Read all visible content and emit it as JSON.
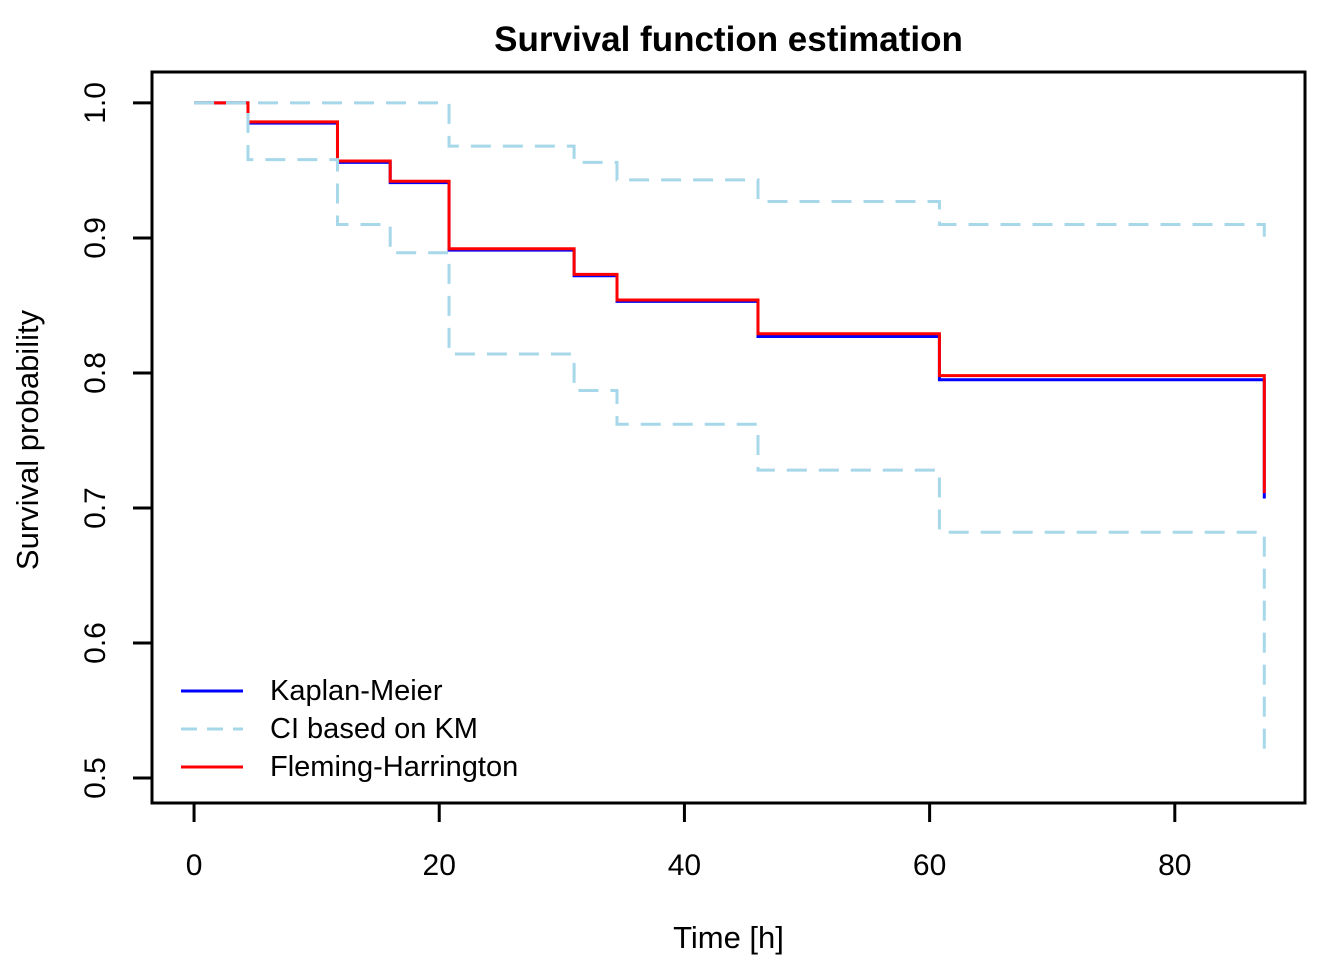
{
  "title": "Survival function estimation",
  "xlabel": "Time [h]",
  "ylabel": "Survival probability",
  "colors": {
    "kaplan_meier": "#0000FF",
    "fleming_harrington": "#FF0000",
    "ci_band": "#A7D8EA",
    "axis": "#000000",
    "background": "#FFFFFF"
  },
  "legend": {
    "items": [
      {
        "label": "Kaplan-Meier",
        "series_key": "km",
        "dashed": false
      },
      {
        "label": "CI based on KM",
        "series_key": "ci",
        "dashed": true
      },
      {
        "label": "Fleming-Harrington",
        "series_key": "fh",
        "dashed": false
      }
    ]
  },
  "chart_data": {
    "type": "line",
    "subtype": "step-survival-curves",
    "title": "Survival function estimation",
    "xlabel": "Time [h]",
    "ylabel": "Survival probability",
    "x_ticks": [
      0,
      20,
      40,
      60,
      80
    ],
    "y_ticks": [
      "0.5",
      "0.6",
      "0.7",
      "0.8",
      "0.9",
      "1.0"
    ],
    "xlim": [
      -3.43,
      90.62
    ],
    "ylim": [
      0.4815,
      1.0229
    ],
    "grid": false,
    "legend_position": "bottom-left",
    "series": [
      {
        "name": "Kaplan-Meier",
        "key": "km",
        "color": "#0000FF",
        "dashed": false,
        "steps": [
          [
            0,
            1.0
          ],
          [
            4.4,
            0.985
          ],
          [
            11.7,
            0.956
          ],
          [
            16,
            0.941
          ],
          [
            20.8,
            0.891
          ],
          [
            31,
            0.872
          ],
          [
            34.5,
            0.853
          ],
          [
            46,
            0.827
          ],
          [
            60.8,
            0.795
          ],
          [
            87.3,
            0.707
          ]
        ]
      },
      {
        "name": "Fleming-Harrington",
        "key": "fh",
        "color": "#FF0000",
        "dashed": false,
        "steps": [
          [
            0,
            1.0
          ],
          [
            4.4,
            0.986
          ],
          [
            11.7,
            0.957
          ],
          [
            16,
            0.942
          ],
          [
            20.8,
            0.892
          ],
          [
            31,
            0.873
          ],
          [
            34.5,
            0.854
          ],
          [
            46,
            0.829
          ],
          [
            60.8,
            0.798
          ],
          [
            87.3,
            0.711
          ]
        ]
      },
      {
        "name": "CI upper based on KM",
        "key": "ci",
        "color": "#A7D8EA",
        "dashed": true,
        "steps": [
          [
            0,
            1.0
          ],
          [
            20.8,
            0.968
          ],
          [
            31,
            0.956
          ],
          [
            34.5,
            0.943
          ],
          [
            46,
            0.927
          ],
          [
            60.8,
            0.91
          ],
          [
            87.3,
            0.899
          ]
        ]
      },
      {
        "name": "CI lower based on KM",
        "key": "ci",
        "color": "#A7D8EA",
        "dashed": true,
        "steps": [
          [
            0,
            1.0
          ],
          [
            4.4,
            0.958
          ],
          [
            11.7,
            0.91
          ],
          [
            16,
            0.889
          ],
          [
            20.8,
            0.814
          ],
          [
            31,
            0.787
          ],
          [
            34.5,
            0.762
          ],
          [
            46,
            0.728
          ],
          [
            60.8,
            0.682
          ],
          [
            87.3,
            0.513
          ]
        ]
      }
    ]
  }
}
